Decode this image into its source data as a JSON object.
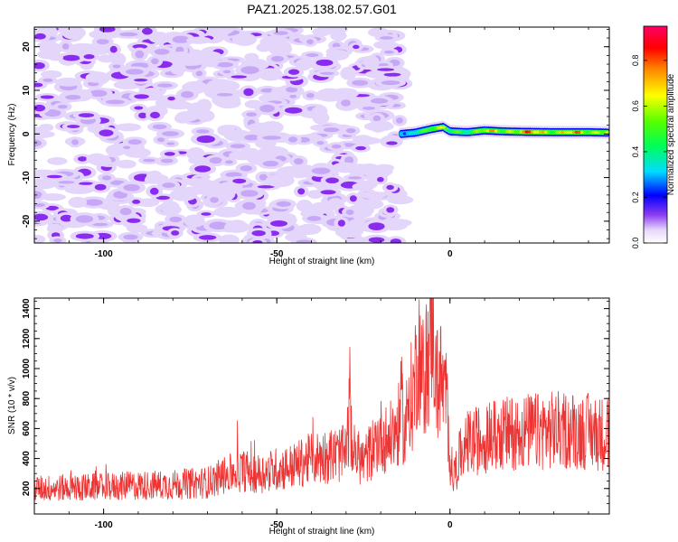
{
  "title": "PAZ1.2025.138.02.57.G01",
  "chart_data": [
    {
      "type": "heatmap",
      "name": "spectrogram",
      "xlabel": "Height of straight line (km)",
      "ylabel": "Frequency (Hz)",
      "xlim": [
        -120,
        46
      ],
      "ylim": [
        -25,
        24.5
      ],
      "xticks": [
        -100,
        -50,
        0
      ],
      "yticks": [
        -20,
        -10,
        0,
        10,
        20
      ],
      "colorbar": {
        "label": "Normalized spectral amplitude",
        "range": [
          0,
          0.95
        ],
        "ticks": [
          0.0,
          0.2,
          0.4,
          0.6,
          0.8
        ],
        "tick_labels": [
          "0.0",
          "0.2",
          "0.4",
          "0.6",
          "0.8"
        ],
        "colormap": "hsv-rainbow (white, violet, blue, cyan, green, yellow, orange, red, magenta)"
      },
      "noise_region": {
        "x": [
          -120,
          -14
        ],
        "y": [
          -25,
          24.5
        ],
        "amplitude": [
          0.0,
          0.1
        ]
      },
      "signal_track": {
        "x": [
          -14,
          -10,
          -5,
          -2,
          0,
          5,
          10,
          15,
          20,
          30,
          40,
          46
        ],
        "freq": [
          0,
          0.3,
          1.2,
          1.6,
          0.6,
          0.4,
          0.8,
          0.6,
          0.5,
          0.4,
          0.4,
          0.3
        ],
        "peak_amplitude": [
          0.15,
          0.5,
          0.85,
          0.7,
          0.55,
          0.65,
          0.8,
          0.75,
          0.9,
          0.85,
          0.85,
          0.85
        ]
      }
    },
    {
      "type": "line",
      "name": "snr",
      "xlabel": "Height of straight line (km)",
      "ylabel": "SNR (10 * v/v)",
      "xlim": [
        -120,
        46
      ],
      "ylim": [
        30,
        1470
      ],
      "xticks": [
        -100,
        -50,
        0
      ],
      "yticks": [
        200,
        400,
        600,
        800,
        1000,
        1200,
        1400
      ],
      "color": "#ee3333",
      "series": [
        {
          "x": [
            -120,
            -110,
            -100,
            -90,
            -80,
            -70,
            -65,
            -60,
            -55,
            -50,
            -45,
            -40,
            -35,
            -30,
            -29,
            -28,
            -27,
            -25,
            -22,
            -20,
            -18,
            -15,
            -14,
            -13,
            -12,
            -11,
            -10,
            -9,
            -8,
            -7,
            -6,
            -5,
            -4,
            -3,
            -2,
            -1,
            0,
            1,
            3,
            5,
            8,
            10,
            15,
            20,
            25,
            30,
            35,
            40,
            46
          ],
          "y": [
            200,
            205,
            210,
            220,
            225,
            240,
            290,
            320,
            300,
            330,
            350,
            400,
            420,
            430,
            700,
            450,
            420,
            380,
            480,
            560,
            520,
            600,
            760,
            520,
            830,
            760,
            950,
            1150,
            920,
            1000,
            1100,
            1380,
            880,
            960,
            850,
            800,
            400,
            280,
            420,
            500,
            520,
            540,
            560,
            580,
            580,
            590,
            590,
            580,
            560
          ]
        }
      ]
    }
  ]
}
